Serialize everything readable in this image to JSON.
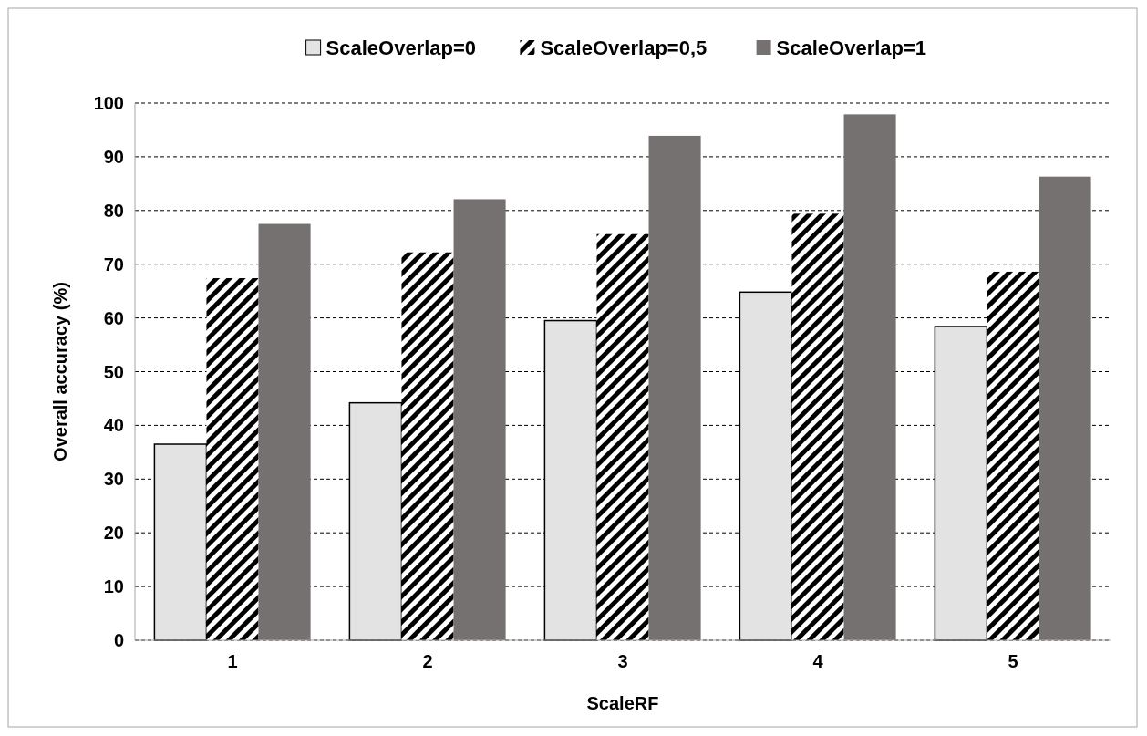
{
  "chart_data": {
    "type": "bar",
    "xlabel": "ScaleRF",
    "ylabel": "Overall accuracy (%)",
    "categories": [
      "1",
      "2",
      "3",
      "4",
      "5"
    ],
    "series": [
      {
        "name": "ScaleOverlap=0",
        "color": "#e3e3e3",
        "values": [
          36.5,
          44.2,
          59.5,
          64.8,
          58.4
        ]
      },
      {
        "name": "ScaleOverlap=0,5",
        "color": "#000000",
        "values": [
          67.4,
          72.2,
          75.6,
          79.4,
          68.6
        ]
      },
      {
        "name": "ScaleOverlap=1",
        "color": "#767171",
        "values": [
          77.5,
          82.1,
          93.9,
          97.9,
          86.3
        ]
      }
    ],
    "ylim": [
      0,
      100
    ],
    "yticks": [
      0,
      10,
      20,
      30,
      40,
      50,
      60,
      70,
      80,
      90,
      100
    ],
    "grid": "y",
    "legend": "top"
  }
}
